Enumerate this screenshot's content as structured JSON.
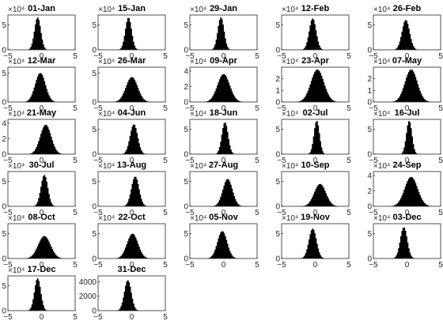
{
  "chart_data": {
    "type": "histogram-grid",
    "xlim": [
      -5,
      5
    ],
    "x_ticks": [
      -5,
      0,
      5
    ],
    "colors": {
      "bar": "#000000",
      "axis": "#262626",
      "background": "#ffffff"
    },
    "panels": [
      {
        "title": "01-Jan",
        "exponent": "×10⁴",
        "y_ticks": [
          "0",
          "5"
        ],
        "ylim": [
          0,
          7
        ],
        "center": -0.6,
        "spread": 0.45,
        "peak": 6.5
      },
      {
        "title": "15-Jan",
        "exponent": "×10⁴",
        "y_ticks": [
          "0",
          "5"
        ],
        "ylim": [
          0,
          7
        ],
        "center": -0.5,
        "spread": 0.45,
        "peak": 6.5
      },
      {
        "title": "29-Jan",
        "exponent": "×10⁴",
        "y_ticks": [
          "0",
          "5"
        ],
        "ylim": [
          0,
          7
        ],
        "center": -0.4,
        "spread": 0.45,
        "peak": 6.5
      },
      {
        "title": "12-Feb",
        "exponent": "×10⁴",
        "y_ticks": [
          "0",
          "5"
        ],
        "ylim": [
          0,
          7
        ],
        "center": -0.4,
        "spread": 0.5,
        "peak": 6.3
      },
      {
        "title": "26-Feb",
        "exponent": "×10⁴",
        "y_ticks": [
          "0",
          "5"
        ],
        "ylim": [
          0,
          7
        ],
        "center": -0.2,
        "spread": 0.55,
        "peak": 6.0
      },
      {
        "title": "12-Mar",
        "exponent": "×10⁴",
        "y_ticks": [
          "0",
          "5"
        ],
        "ylim": [
          0,
          6
        ],
        "center": -0.2,
        "spread": 0.75,
        "peak": 5.0
      },
      {
        "title": "26-Mar",
        "exponent": "×10⁴",
        "y_ticks": [
          "0",
          "5"
        ],
        "ylim": [
          0,
          6
        ],
        "center": 0.0,
        "spread": 0.85,
        "peak": 4.3
      },
      {
        "title": "09-Apr",
        "exponent": "×10⁴",
        "y_ticks": [
          "0",
          "2",
          "4"
        ],
        "ylim": [
          0,
          4.5
        ],
        "center": 0.0,
        "spread": 0.9,
        "peak": 3.6
      },
      {
        "title": "23-Apr",
        "exponent": "×10⁴",
        "y_ticks": [
          "0",
          "1",
          "2"
        ],
        "ylim": [
          0,
          3
        ],
        "center": 0.3,
        "spread": 0.95,
        "peak": 2.8
      },
      {
        "title": "07-May",
        "exponent": "×10⁴",
        "y_ticks": [
          "0",
          "1",
          "2"
        ],
        "ylim": [
          0,
          3
        ],
        "center": 0.6,
        "spread": 0.9,
        "peak": 2.8
      },
      {
        "title": "21-May",
        "exponent": "×10⁴",
        "y_ticks": [
          "0",
          "2",
          "4"
        ],
        "ylim": [
          0,
          4.5
        ],
        "center": 0.6,
        "spread": 0.8,
        "peak": 3.8
      },
      {
        "title": "04-Jun",
        "exponent": "×10⁴",
        "y_ticks": [
          "0",
          "5"
        ],
        "ylim": [
          0,
          7
        ],
        "center": 0.3,
        "spread": 0.55,
        "peak": 6.0
      },
      {
        "title": "18-Jun",
        "exponent": "×10⁴",
        "y_ticks": [
          "0",
          "5"
        ],
        "ylim": [
          0,
          7
        ],
        "center": 0.2,
        "spread": 0.45,
        "peak": 6.4
      },
      {
        "title": "02-Jul",
        "exponent": "×10⁴",
        "y_ticks": [
          "0",
          "5"
        ],
        "ylim": [
          0,
          7
        ],
        "center": 0.2,
        "spread": 0.4,
        "peak": 6.7
      },
      {
        "title": "16-Jul",
        "exponent": "×10⁴",
        "y_ticks": [
          "0",
          "5"
        ],
        "ylim": [
          0,
          7
        ],
        "center": 0.3,
        "spread": 0.4,
        "peak": 6.7
      },
      {
        "title": "30-Jul",
        "exponent": "×10⁴",
        "y_ticks": [
          "0",
          "5"
        ],
        "ylim": [
          0,
          7
        ],
        "center": 0.4,
        "spread": 0.5,
        "peak": 6.3
      },
      {
        "title": "13-Aug",
        "exponent": "×10⁴",
        "y_ticks": [
          "0",
          "5"
        ],
        "ylim": [
          0,
          7
        ],
        "center": 0.5,
        "spread": 0.55,
        "peak": 6.0
      },
      {
        "title": "27-Aug",
        "exponent": "×10⁴",
        "y_ticks": [
          "0",
          "5"
        ],
        "ylim": [
          0,
          7
        ],
        "center": 0.6,
        "spread": 0.7,
        "peak": 5.5
      },
      {
        "title": "10-Sep",
        "exponent": "×10⁴",
        "y_ticks": [
          "0",
          "5"
        ],
        "ylim": [
          0,
          7
        ],
        "center": 0.7,
        "spread": 0.85,
        "peak": 4.5
      },
      {
        "title": "24-Sep",
        "exponent": "×10⁴",
        "y_ticks": [
          "0",
          "2",
          "4"
        ],
        "ylim": [
          0,
          4.5
        ],
        "center": 0.6,
        "spread": 0.95,
        "peak": 3.8
      },
      {
        "title": "08-Oct",
        "exponent": "×10⁴",
        "y_ticks": [
          "0",
          "5"
        ],
        "ylim": [
          0,
          7
        ],
        "center": 0.4,
        "spread": 0.9,
        "peak": 4.5
      },
      {
        "title": "22-Oct",
        "exponent": "×10⁴",
        "y_ticks": [
          "0",
          "5"
        ],
        "ylim": [
          0,
          7
        ],
        "center": 0.1,
        "spread": 0.8,
        "peak": 5.0
      },
      {
        "title": "05-Nov",
        "exponent": "×10⁴",
        "y_ticks": [
          "0",
          "5"
        ],
        "ylim": [
          0,
          7
        ],
        "center": -0.2,
        "spread": 0.7,
        "peak": 5.5
      },
      {
        "title": "19-Nov",
        "exponent": "×10⁴",
        "y_ticks": [
          "0",
          "5"
        ],
        "ylim": [
          0,
          7
        ],
        "center": -0.4,
        "spread": 0.55,
        "peak": 6.0
      },
      {
        "title": "03-Dec",
        "exponent": "×10⁴",
        "y_ticks": [
          "0",
          "5"
        ],
        "ylim": [
          0,
          7
        ],
        "center": -0.5,
        "spread": 0.5,
        "peak": 6.3
      },
      {
        "title": "17-Dec",
        "exponent": "×10⁴",
        "y_ticks": [
          "0",
          "5"
        ],
        "ylim": [
          0,
          7
        ],
        "center": -0.6,
        "spread": 0.45,
        "peak": 6.5
      },
      {
        "title": "31-Dec",
        "exponent": "",
        "y_ticks": [
          "0",
          "2000",
          "4000"
        ],
        "ylim": [
          0,
          4800
        ],
        "center": -0.6,
        "spread": 0.5,
        "peak": 4200
      }
    ]
  }
}
